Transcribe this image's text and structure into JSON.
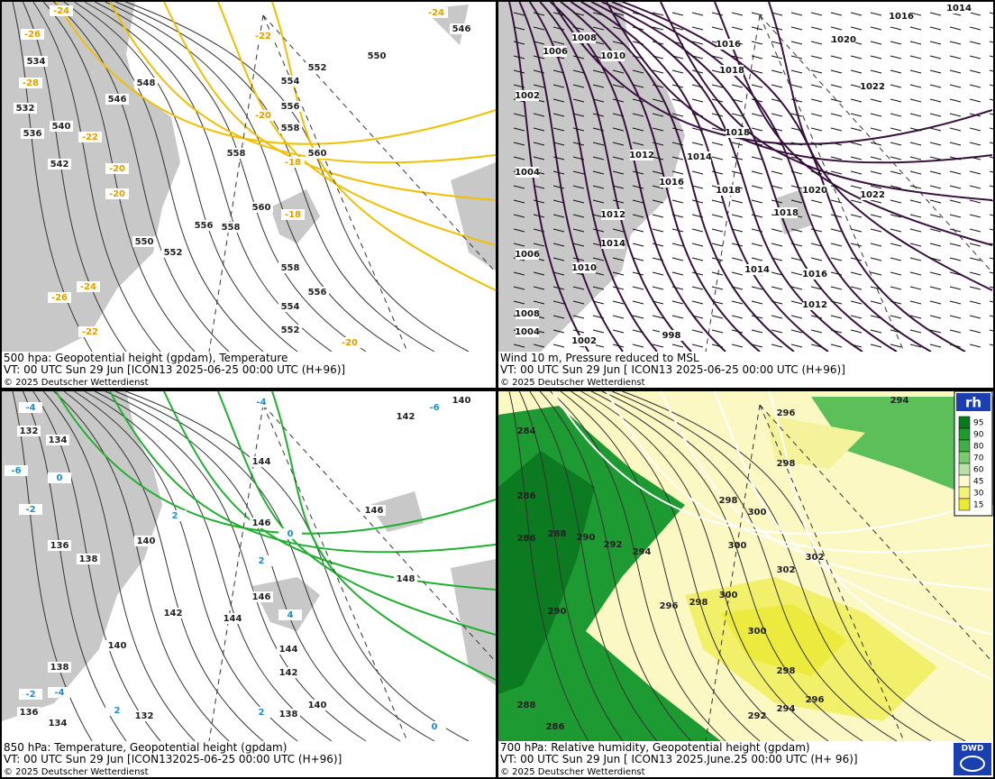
{
  "panels": [
    {
      "caption": [
        "500 hpa: Geopotential height (gpdam), Temperature",
        "VT: 00 UTC Sun  29 Jun [ICON13 2025-06-25 00:00 UTC  (H+96)]",
        "© 2025 Deutscher Wetterdienst"
      ],
      "labels": [
        "-24",
        "-26",
        "-28",
        "534",
        "532",
        "536",
        "540",
        "542",
        "546",
        "548",
        "-22",
        "-20",
        "-20",
        "550",
        "552",
        "554",
        "556",
        "558",
        "560",
        "-18",
        "-18",
        "558",
        "556",
        "558",
        "560",
        "558",
        "556",
        "554",
        "552",
        "-20",
        "-22",
        "-24",
        "-26",
        "552",
        "550",
        "-22",
        "-20",
        "-24",
        "546"
      ]
    },
    {
      "caption": [
        "Wind 10 m, Pressure reduced to MSL",
        "VT: 00 UTC Sun  29 Jun [ ICON13 2025-06-25 00:00 UTC  (H+96)]",
        "© 2025 Deutscher Wetterdienst"
      ],
      "labels": [
        "1016",
        "1014",
        "1008",
        "1006",
        "1010",
        "1020",
        "1016",
        "1018",
        "1022",
        "1002",
        "1018",
        "1012",
        "1014",
        "1016",
        "1004",
        "1018",
        "1020",
        "1022",
        "1018",
        "1012",
        "1014",
        "1006",
        "1010",
        "1014",
        "1016",
        "1012",
        "1008",
        "1004",
        "998",
        "1002"
      ]
    },
    {
      "caption": [
        "850 hPa:  Temperature, Geopotential height (gpdam)",
        "VT: 00 UTC Sun  29 Jun [ICON132025-06-25 00:00 UTC (H+96)]",
        "© 2025 Deutscher Wetterdienst"
      ],
      "labels": [
        "132",
        "134",
        "140",
        "142",
        "144",
        "146",
        "148",
        "146",
        "136",
        "138",
        "140",
        "142",
        "140",
        "144",
        "146",
        "144",
        "142",
        "140",
        "138",
        "136",
        "134",
        "132",
        "138",
        "-4",
        "-6",
        "-4",
        "-6",
        "-2",
        "0",
        "2",
        "0",
        "2",
        "4",
        "2",
        "0",
        "-2",
        "-4",
        "2"
      ]
    },
    {
      "caption": [
        "700 hPa:  Relative humidity, Geopotential height (gpdam)",
        "VT: 00 UTC Sun  29 Jun [ ICON13  2025.June.25 00:00 UTC  (H+ 96)]",
        "© 2025 Deutscher Wetterdienst"
      ],
      "labels": [
        "294",
        "296",
        "298",
        "300",
        "298",
        "300",
        "302",
        "302",
        "290",
        "288",
        "286",
        "284",
        "286",
        "292",
        "294",
        "296",
        "298",
        "300",
        "300",
        "298",
        "296",
        "294",
        "292",
        "288",
        "286",
        "290"
      ]
    }
  ],
  "legend": {
    "title": "rh",
    "levels": [
      95,
      90,
      80,
      70,
      60,
      45,
      30,
      15
    ]
  },
  "logo": "DWD"
}
